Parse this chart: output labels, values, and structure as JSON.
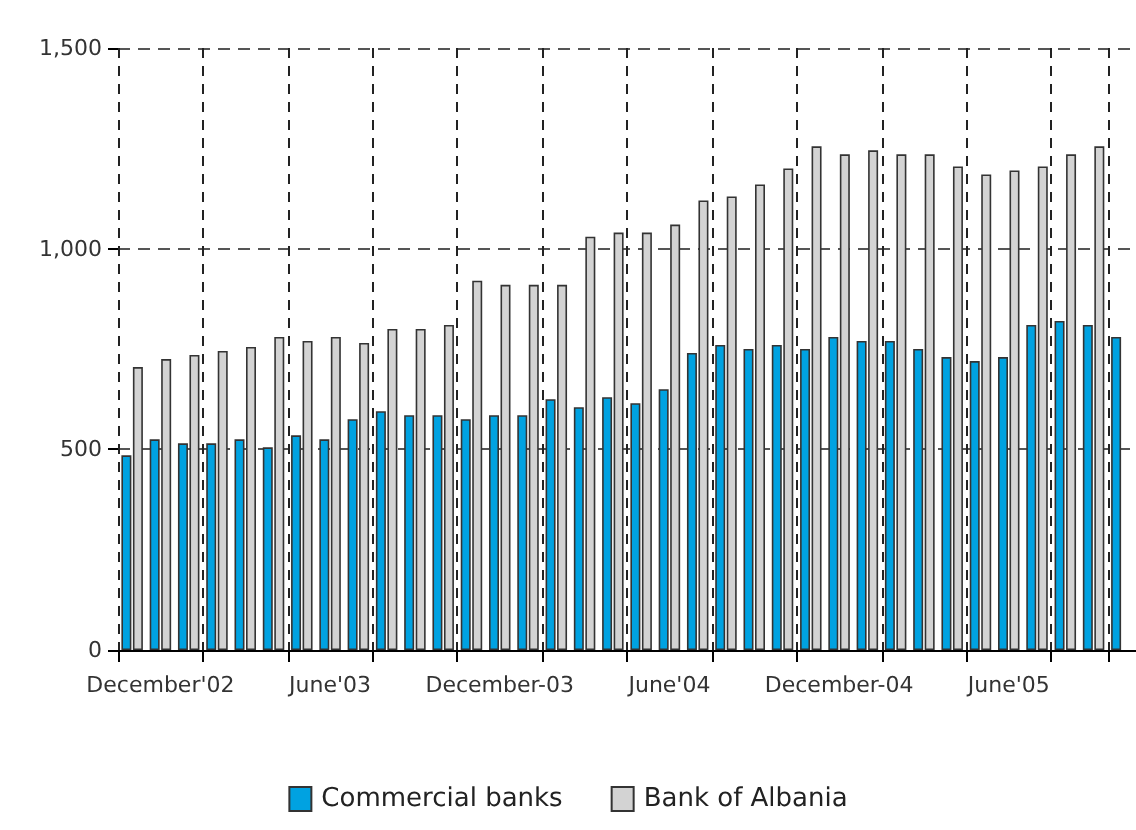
{
  "chart_data": {
    "type": "bar",
    "categories": [
      null,
      "December'02",
      null,
      null,
      null,
      null,
      null,
      "June'03",
      null,
      null,
      null,
      null,
      null,
      "December-03",
      null,
      null,
      null,
      null,
      null,
      "June'04",
      null,
      null,
      null,
      null,
      null,
      "December-04",
      null,
      null,
      null,
      null,
      null,
      "June'05",
      null,
      null,
      null,
      null
    ],
    "series": [
      {
        "name": "Commercial banks",
        "color": "#00a2e1",
        "values": [
          485,
          525,
          515,
          515,
          525,
          505,
          535,
          525,
          575,
          595,
          585,
          585,
          575,
          585,
          585,
          625,
          605,
          630,
          615,
          650,
          740,
          760,
          750,
          760,
          750,
          780,
          770,
          770,
          750,
          730,
          720,
          730,
          810,
          820,
          810,
          780
        ]
      },
      {
        "name": "Bank of Albania",
        "color": "#d3d3d3",
        "values": [
          705,
          725,
          735,
          745,
          755,
          780,
          770,
          780,
          765,
          800,
          800,
          810,
          920,
          910,
          910,
          910,
          1030,
          1040,
          1040,
          1060,
          1120,
          1130,
          1160,
          1200,
          1255,
          1235,
          1245,
          1235,
          1235,
          1205,
          1185,
          1195,
          1205,
          1235,
          1255,
          null
        ]
      }
    ],
    "ylim": [
      0,
      1500
    ],
    "yticks": [
      0,
      500,
      {
        "value": 1000,
        "label": "1,000"
      },
      {
        "value": 1500,
        "label": "1,500"
      }
    ],
    "grid": true,
    "legend": "bottom"
  }
}
